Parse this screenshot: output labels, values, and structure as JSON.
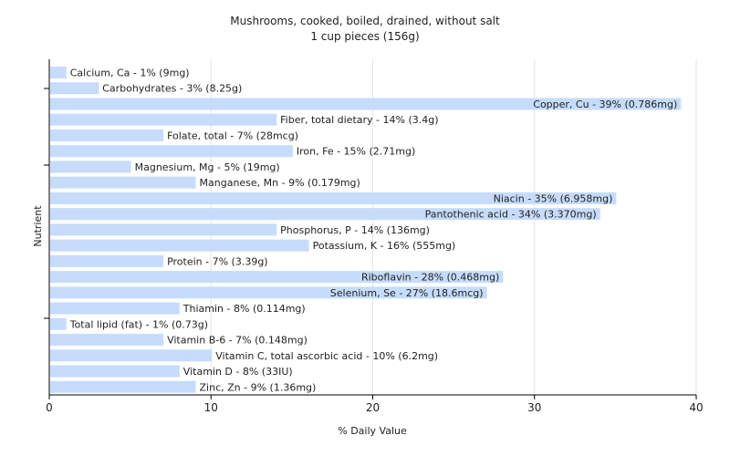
{
  "chart_data": {
    "type": "bar",
    "orientation": "horizontal",
    "title": "Mushrooms, cooked, boiled, drained, without salt",
    "subtitle": "1 cup pieces (156g)",
    "xlabel": "% Daily Value",
    "ylabel": "Nutrient",
    "xlim": [
      0,
      40
    ],
    "xticks": [
      0,
      10,
      20,
      30,
      40
    ],
    "grid": true,
    "bar_color": "#c6dcfa",
    "categories": [
      "Calcium, Ca - 1% (9mg)",
      "Carbohydrates - 3% (8.25g)",
      "Copper, Cu - 39% (0.786mg)",
      "Fiber, total dietary - 14% (3.4g)",
      "Folate, total - 7% (28mcg)",
      "Iron, Fe - 15% (2.71mg)",
      "Magnesium, Mg - 5% (19mg)",
      "Manganese, Mn - 9% (0.179mg)",
      "Niacin - 35% (6.958mg)",
      "Pantothenic acid - 34% (3.370mg)",
      "Phosphorus, P - 14% (136mg)",
      "Potassium, K - 16% (555mg)",
      "Protein - 7% (3.39g)",
      "Riboflavin - 28% (0.468mg)",
      "Selenium, Se - 27% (18.6mcg)",
      "Thiamin - 8% (0.114mg)",
      "Total lipid (fat) - 1% (0.73g)",
      "Vitamin B-6 - 7% (0.148mg)",
      "Vitamin C, total ascorbic acid - 10% (6.2mg)",
      "Vitamin D - 8% (33IU)",
      "Zinc, Zn - 9% (1.36mg)"
    ],
    "values": [
      1,
      3,
      39,
      14,
      7,
      15,
      5,
      9,
      35,
      34,
      14,
      16,
      7,
      28,
      27,
      8,
      1,
      7,
      10,
      8,
      9
    ]
  }
}
